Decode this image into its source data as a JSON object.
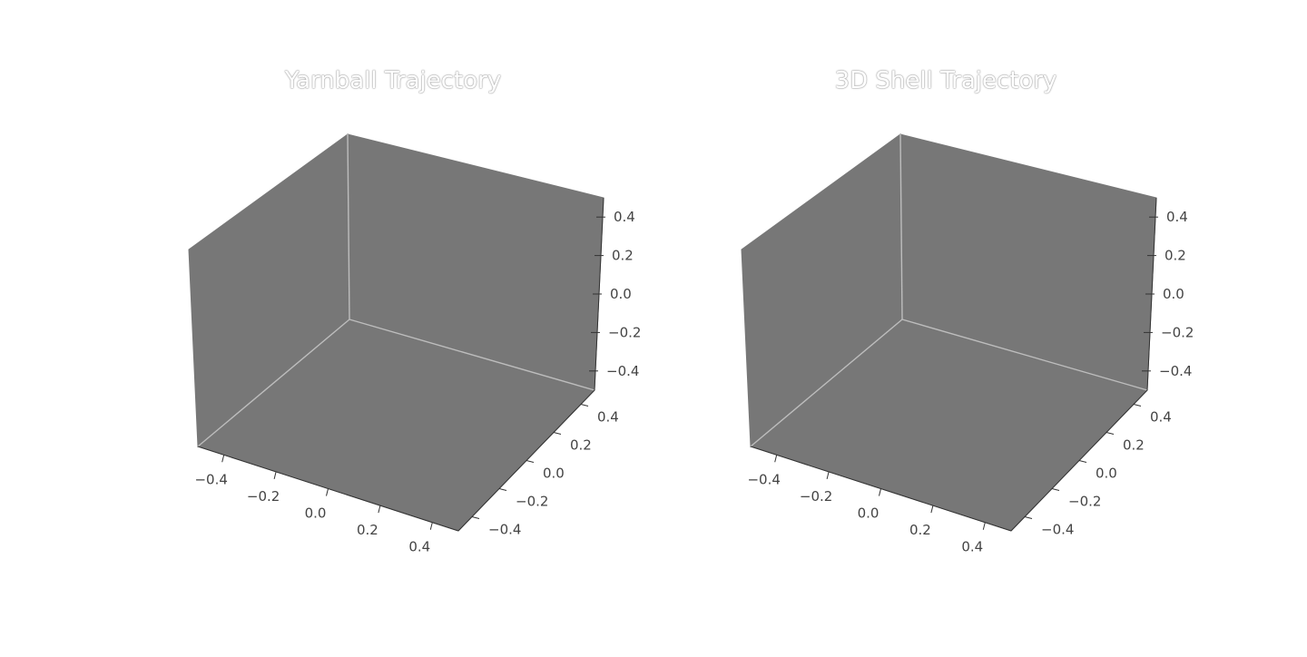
{
  "chart_data": [
    {
      "type": "scatter3d",
      "title": "Yarnball Trajectory",
      "xlabel": "",
      "ylabel": "",
      "zlabel": "",
      "xlim": [
        -0.5,
        0.5
      ],
      "ylim": [
        -0.5,
        0.5
      ],
      "zlim": [
        -0.5,
        0.5
      ],
      "xticks": [
        "−0.4",
        "−0.2",
        "0.0",
        "0.2",
        "0.4"
      ],
      "yticks": [
        "−0.4",
        "−0.2",
        "0.0",
        "0.2",
        "0.4"
      ],
      "zticks": [
        "−0.4",
        "−0.2",
        "0.0",
        "0.2",
        "0.4"
      ],
      "series": [],
      "grid": false,
      "pane_color": "#777777",
      "edge_color": "#bdbdbd"
    },
    {
      "type": "scatter3d",
      "title": "3D Shell Trajectory",
      "xlabel": "",
      "ylabel": "",
      "zlabel": "",
      "xlim": [
        -0.5,
        0.5
      ],
      "ylim": [
        -0.5,
        0.5
      ],
      "zlim": [
        -0.5,
        0.5
      ],
      "xticks": [
        "−0.4",
        "−0.2",
        "0.0",
        "0.2",
        "0.4"
      ],
      "yticks": [
        "−0.4",
        "−0.2",
        "0.0",
        "0.2",
        "0.4"
      ],
      "zticks": [
        "−0.4",
        "−0.2",
        "0.0",
        "0.2",
        "0.4"
      ],
      "series": [],
      "grid": false,
      "pane_color": "#777777",
      "edge_color": "#bdbdbd"
    }
  ]
}
